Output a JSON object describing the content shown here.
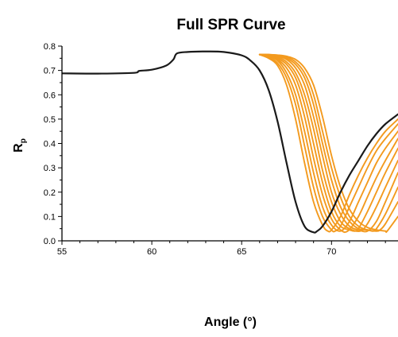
{
  "chart_data": {
    "type": "line",
    "title": "Full SPR Curve",
    "xlabel": "Angle (°)",
    "ylabel": "Rp",
    "xlim": [
      55,
      73.7
    ],
    "ylim": [
      0.0,
      0.8
    ],
    "x_ticks": [
      55,
      60,
      65,
      70
    ],
    "y_ticks": [
      0.0,
      0.1,
      0.2,
      0.3,
      0.4,
      0.5,
      0.6,
      0.7,
      0.8
    ],
    "x_tick_labels": [
      "55",
      "60",
      "65",
      "70"
    ],
    "y_tick_labels": [
      "0.0",
      "0.1",
      "0.2",
      "0.3",
      "0.4",
      "0.5",
      "0.6",
      "0.7",
      "0.8"
    ],
    "grid": false,
    "legend": "none",
    "colors": {
      "reference": "#1a1a1a",
      "shifted": "#f39a1e"
    },
    "series": [
      {
        "color": "#1a1a1a",
        "x": [
          55,
          57,
          59,
          59.3,
          60,
          60.8,
          61.2,
          61.4,
          62,
          63,
          64,
          65,
          65.5,
          66,
          66.5,
          67,
          67.5,
          68,
          68.5,
          69,
          69.2,
          69.5,
          70,
          70.5,
          71,
          71.5,
          72,
          72.5,
          73,
          73.7
        ],
        "y": [
          0.688,
          0.687,
          0.69,
          0.698,
          0.703,
          0.72,
          0.745,
          0.77,
          0.776,
          0.778,
          0.776,
          0.762,
          0.74,
          0.7,
          0.62,
          0.49,
          0.32,
          0.16,
          0.06,
          0.035,
          0.04,
          0.06,
          0.12,
          0.2,
          0.27,
          0.33,
          0.39,
          0.44,
          0.48,
          0.52
        ]
      },
      {
        "color": "#f39a1e",
        "x": [
          66,
          66.5,
          67,
          67.5,
          68,
          68.5,
          69,
          69.5,
          69.8,
          70,
          70.5,
          71,
          71.5,
          72,
          72.5,
          73,
          73.7
        ],
        "y": [
          0.765,
          0.75,
          0.72,
          0.64,
          0.5,
          0.32,
          0.16,
          0.065,
          0.04,
          0.045,
          0.1,
          0.19,
          0.27,
          0.34,
          0.4,
          0.45,
          0.5
        ]
      },
      {
        "color": "#f39a1e",
        "x": [
          66,
          66.5,
          67,
          67.5,
          68,
          68.5,
          69,
          69.5,
          70,
          70.2,
          70.5,
          71,
          71.5,
          72,
          72.5,
          73,
          73.7
        ],
        "y": [
          0.765,
          0.755,
          0.73,
          0.67,
          0.56,
          0.39,
          0.22,
          0.1,
          0.045,
          0.04,
          0.06,
          0.14,
          0.22,
          0.3,
          0.37,
          0.42,
          0.48
        ]
      },
      {
        "color": "#f39a1e",
        "x": [
          66,
          66.5,
          67,
          67.5,
          68,
          68.5,
          69,
          69.5,
          70,
          70.5,
          71,
          71.5,
          72,
          72.5,
          73,
          73.7
        ],
        "y": [
          0.765,
          0.758,
          0.74,
          0.69,
          0.6,
          0.45,
          0.28,
          0.14,
          0.065,
          0.04,
          0.08,
          0.16,
          0.24,
          0.32,
          0.38,
          0.45
        ]
      },
      {
        "color": "#f39a1e",
        "x": [
          66,
          66.5,
          67,
          67.5,
          68,
          68.5,
          69,
          69.5,
          70,
          70.5,
          70.9,
          71.5,
          72,
          72.5,
          73,
          73.7
        ],
        "y": [
          0.765,
          0.76,
          0.745,
          0.71,
          0.64,
          0.51,
          0.34,
          0.19,
          0.09,
          0.045,
          0.04,
          0.1,
          0.18,
          0.26,
          0.33,
          0.42
        ]
      },
      {
        "color": "#f39a1e",
        "x": [
          66,
          66.5,
          67,
          67.5,
          68,
          68.5,
          69,
          69.5,
          70,
          70.5,
          71,
          71.3,
          71.5,
          72,
          72.5,
          73,
          73.7
        ],
        "y": [
          0.765,
          0.762,
          0.75,
          0.725,
          0.67,
          0.56,
          0.4,
          0.24,
          0.12,
          0.06,
          0.045,
          0.04,
          0.05,
          0.12,
          0.2,
          0.28,
          0.38
        ]
      },
      {
        "color": "#f39a1e",
        "x": [
          66,
          66.5,
          67,
          67.5,
          68,
          68.5,
          69,
          69.5,
          70,
          70.5,
          71,
          71.6,
          72,
          72.5,
          73,
          73.7
        ],
        "y": [
          0.765,
          0.763,
          0.755,
          0.735,
          0.69,
          0.6,
          0.46,
          0.29,
          0.16,
          0.08,
          0.05,
          0.04,
          0.07,
          0.14,
          0.22,
          0.33
        ]
      },
      {
        "color": "#f39a1e",
        "x": [
          66,
          66.5,
          67,
          67.5,
          68,
          68.5,
          69,
          69.5,
          70,
          70.5,
          71,
          71.5,
          72,
          72.5,
          73,
          73.7
        ],
        "y": [
          0.765,
          0.764,
          0.758,
          0.745,
          0.71,
          0.64,
          0.51,
          0.35,
          0.2,
          0.11,
          0.06,
          0.045,
          0.04,
          0.08,
          0.16,
          0.28
        ]
      },
      {
        "color": "#f39a1e",
        "x": [
          66,
          66.5,
          67,
          67.5,
          68,
          68.5,
          69,
          69.5,
          70,
          70.5,
          71,
          71.5,
          72,
          72.3,
          72.5,
          73,
          73.7
        ],
        "y": [
          0.765,
          0.765,
          0.76,
          0.75,
          0.725,
          0.67,
          0.56,
          0.4,
          0.25,
          0.14,
          0.08,
          0.05,
          0.045,
          0.04,
          0.05,
          0.11,
          0.22
        ]
      },
      {
        "color": "#f39a1e",
        "x": [
          66,
          66.5,
          67,
          67.5,
          68,
          68.5,
          69,
          69.5,
          70,
          70.5,
          71,
          71.5,
          72,
          72.5,
          72.7,
          73,
          73.7
        ],
        "y": [
          0.765,
          0.765,
          0.762,
          0.755,
          0.735,
          0.69,
          0.6,
          0.45,
          0.3,
          0.18,
          0.1,
          0.06,
          0.045,
          0.04,
          0.045,
          0.07,
          0.16
        ]
      },
      {
        "color": "#f39a1e",
        "x": [
          66,
          66.5,
          67,
          67.5,
          68,
          68.5,
          69,
          69.5,
          70,
          70.5,
          71,
          71.5,
          72,
          72.5,
          73,
          73.1,
          73.7
        ],
        "y": [
          0.765,
          0.765,
          0.763,
          0.758,
          0.745,
          0.71,
          0.64,
          0.51,
          0.35,
          0.22,
          0.13,
          0.08,
          0.055,
          0.045,
          0.04,
          0.04,
          0.1
        ]
      }
    ]
  }
}
